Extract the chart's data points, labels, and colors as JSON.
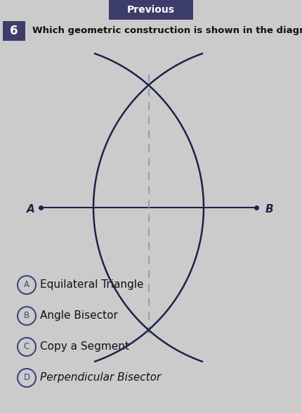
{
  "bg_color": "#cccbcb",
  "header_color": "#3d3d6b",
  "header_text": "Previous",
  "header_text_color": "#ffffff",
  "question_number": "6",
  "question_number_bg": "#3d3d6b",
  "question_number_color": "#ffffff",
  "question_text": "Which geometric construction is shown in the diagram?",
  "label_A": "A",
  "label_B": "B",
  "choices": [
    {
      "letter": "A",
      "text": "Equilateral Triangle"
    },
    {
      "letter": "B",
      "text": "Angle Bisector"
    },
    {
      "letter": "C",
      "text": "Copy a Segment"
    },
    {
      "letter": "D",
      "text": "Perpendicular Bisector"
    }
  ],
  "line_color": "#1e2248",
  "dashed_color": "#8899bb",
  "choice_color": "#3d4480"
}
